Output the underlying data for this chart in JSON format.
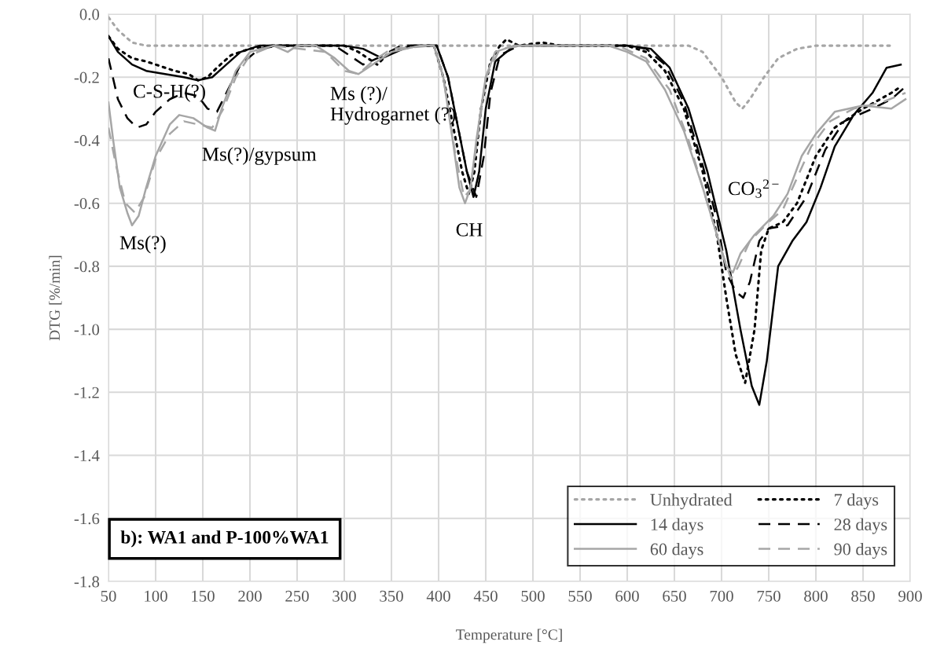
{
  "chart_data": {
    "type": "line",
    "xlabel": "Temperature [°C]",
    "ylabel": "DTG [%/min]",
    "xlim": [
      50,
      900
    ],
    "xticks": [
      50,
      100,
      150,
      200,
      250,
      300,
      350,
      400,
      450,
      500,
      550,
      600,
      650,
      700,
      750,
      800,
      850,
      900
    ],
    "ylim": [
      -1.8,
      0.0
    ],
    "yticks": [
      {
        "value": -1.8,
        "label": "-1.8"
      },
      {
        "value": -1.6,
        "label": "-1.6"
      },
      {
        "value": -1.4,
        "label": "-1.4"
      },
      {
        "value": -1.2,
        "label": "-1.2"
      },
      {
        "value": -1.0,
        "label": "-1.0"
      },
      {
        "value": -0.8,
        "label": "-0.8"
      },
      {
        "value": -0.6,
        "label": "-0.6"
      },
      {
        "value": -0.4,
        "label": "-0.4"
      },
      {
        "value": -0.2,
        "label": "-0.2"
      },
      {
        "value": 0.0,
        "label": "0.0"
      }
    ],
    "grid": true,
    "legend": "bottom right",
    "marker": "none",
    "series": [
      {
        "name": "Unhydrated",
        "color": "#a6a6a6",
        "line_style": "dotted",
        "x": [
          50,
          60,
          75,
          90,
          300,
          665,
          680,
          700,
          715,
          722,
          730,
          745,
          760,
          780,
          800,
          880
        ],
        "values": [
          -0.01,
          -0.05,
          -0.09,
          -0.1,
          -0.1,
          -0.1,
          -0.12,
          -0.2,
          -0.28,
          -0.3,
          -0.27,
          -0.2,
          -0.14,
          -0.11,
          -0.1,
          -0.1
        ]
      },
      {
        "name": "7 days",
        "color": "#000000",
        "line_style": "dotted",
        "x": [
          50,
          60,
          75,
          90,
          100,
          120,
          135,
          145,
          155,
          165,
          180,
          200,
          220,
          300,
          315,
          325,
          335,
          345,
          360,
          380,
          395,
          405,
          415,
          425,
          432,
          438,
          445,
          455,
          465,
          472,
          485,
          510,
          530,
          600,
          620,
          640,
          660,
          680,
          695,
          705,
          715,
          725,
          735,
          742,
          750,
          765,
          780,
          800,
          820,
          850,
          880,
          890
        ],
        "values": [
          -0.07,
          -0.11,
          -0.14,
          -0.15,
          -0.16,
          -0.18,
          -0.19,
          -0.21,
          -0.2,
          -0.17,
          -0.13,
          -0.11,
          -0.1,
          -0.1,
          -0.12,
          -0.14,
          -0.16,
          -0.13,
          -0.11,
          -0.1,
          -0.1,
          -0.2,
          -0.35,
          -0.5,
          -0.57,
          -0.5,
          -0.3,
          -0.15,
          -0.1,
          -0.08,
          -0.1,
          -0.09,
          -0.1,
          -0.1,
          -0.12,
          -0.18,
          -0.3,
          -0.5,
          -0.7,
          -0.9,
          -1.08,
          -1.17,
          -1.0,
          -0.75,
          -0.68,
          -0.66,
          -0.6,
          -0.45,
          -0.36,
          -0.3,
          -0.25,
          -0.23
        ]
      },
      {
        "name": "14 days",
        "color": "#000000",
        "line_style": "solid",
        "x": [
          50,
          60,
          75,
          90,
          110,
          130,
          145,
          160,
          175,
          190,
          210,
          300,
          320,
          340,
          355,
          370,
          398,
          410,
          420,
          430,
          437,
          443,
          450,
          460,
          480,
          600,
          625,
          645,
          665,
          685,
          705,
          720,
          732,
          740,
          748,
          760,
          775,
          790,
          805,
          820,
          840,
          860,
          875,
          890
        ],
        "values": [
          -0.07,
          -0.12,
          -0.16,
          -0.18,
          -0.19,
          -0.2,
          -0.21,
          -0.2,
          -0.16,
          -0.12,
          -0.1,
          -0.1,
          -0.11,
          -0.14,
          -0.12,
          -0.1,
          -0.1,
          -0.2,
          -0.35,
          -0.5,
          -0.58,
          -0.5,
          -0.3,
          -0.15,
          -0.1,
          -0.1,
          -0.11,
          -0.17,
          -0.3,
          -0.5,
          -0.75,
          -1.0,
          -1.18,
          -1.24,
          -1.1,
          -0.8,
          -0.72,
          -0.66,
          -0.55,
          -0.42,
          -0.32,
          -0.25,
          -0.17,
          -0.16
        ]
      },
      {
        "name": "28 days",
        "color": "#000000",
        "line_style": "dashed",
        "x": [
          50,
          60,
          70,
          80,
          90,
          100,
          115,
          130,
          145,
          155,
          165,
          175,
          190,
          210,
          230,
          290,
          305,
          320,
          335,
          360,
          398,
          410,
          420,
          430,
          440,
          448,
          455,
          465,
          485,
          600,
          620,
          640,
          660,
          680,
          695,
          705,
          715,
          723,
          730,
          740,
          750,
          770,
          790,
          810,
          830,
          860,
          880,
          895
        ],
        "values": [
          -0.14,
          -0.27,
          -0.33,
          -0.36,
          -0.35,
          -0.31,
          -0.27,
          -0.25,
          -0.26,
          -0.3,
          -0.31,
          -0.25,
          -0.16,
          -0.11,
          -0.1,
          -0.1,
          -0.13,
          -0.16,
          -0.14,
          -0.1,
          -0.1,
          -0.2,
          -0.35,
          -0.5,
          -0.58,
          -0.45,
          -0.25,
          -0.13,
          -0.1,
          -0.1,
          -0.11,
          -0.16,
          -0.28,
          -0.48,
          -0.65,
          -0.82,
          -0.88,
          -0.9,
          -0.85,
          -0.72,
          -0.68,
          -0.67,
          -0.58,
          -0.43,
          -0.34,
          -0.3,
          -0.27,
          -0.23
        ]
      },
      {
        "name": "60 days",
        "color": "#a6a6a6",
        "line_style": "solid",
        "x": [
          50,
          55,
          62,
          70,
          75,
          82,
          90,
          100,
          115,
          125,
          140,
          155,
          163,
          170,
          185,
          200,
          225,
          240,
          250,
          270,
          290,
          305,
          315,
          330,
          350,
          380,
          395,
          405,
          415,
          422,
          428,
          434,
          440,
          450,
          460,
          480,
          580,
          600,
          620,
          640,
          660,
          680,
          695,
          705,
          712,
          720,
          735,
          755,
          770,
          785,
          800,
          820,
          850,
          880,
          895
        ],
        "values": [
          -0.28,
          -0.4,
          -0.55,
          -0.63,
          -0.67,
          -0.64,
          -0.55,
          -0.45,
          -0.35,
          -0.32,
          -0.33,
          -0.36,
          -0.37,
          -0.3,
          -0.18,
          -0.12,
          -0.1,
          -0.12,
          -0.1,
          -0.1,
          -0.14,
          -0.18,
          -0.19,
          -0.16,
          -0.12,
          -0.1,
          -0.1,
          -0.2,
          -0.4,
          -0.55,
          -0.6,
          -0.55,
          -0.4,
          -0.2,
          -0.12,
          -0.1,
          -0.1,
          -0.12,
          -0.15,
          -0.24,
          -0.37,
          -0.55,
          -0.7,
          -0.8,
          -0.82,
          -0.76,
          -0.7,
          -0.64,
          -0.57,
          -0.45,
          -0.38,
          -0.31,
          -0.29,
          -0.3,
          -0.27
        ]
      },
      {
        "name": "90 days",
        "color": "#a6a6a6",
        "line_style": "dashed",
        "x": [
          50,
          58,
          68,
          78,
          88,
          100,
          115,
          130,
          145,
          160,
          172,
          185,
          200,
          225,
          280,
          300,
          315,
          330,
          350,
          395,
          405,
          418,
          427,
          433,
          440,
          450,
          465,
          490,
          590,
          620,
          645,
          665,
          685,
          700,
          710,
          718,
          730,
          750,
          765,
          780,
          795,
          815,
          840,
          870,
          895
        ],
        "values": [
          -0.36,
          -0.48,
          -0.6,
          -0.63,
          -0.58,
          -0.46,
          -0.38,
          -0.34,
          -0.35,
          -0.36,
          -0.3,
          -0.2,
          -0.13,
          -0.1,
          -0.12,
          -0.18,
          -0.19,
          -0.15,
          -0.11,
          -0.1,
          -0.2,
          -0.45,
          -0.58,
          -0.56,
          -0.42,
          -0.2,
          -0.11,
          -0.1,
          -0.1,
          -0.14,
          -0.24,
          -0.4,
          -0.6,
          -0.75,
          -0.84,
          -0.8,
          -0.72,
          -0.66,
          -0.62,
          -0.52,
          -0.42,
          -0.34,
          -0.3,
          -0.28,
          -0.25
        ]
      }
    ],
    "annotations": [
      "C-S-H(?)",
      "Ms(?)/gypsum",
      "Ms (?)/\nHydrogarnet (?)",
      "CH",
      "CO$_{3}$$^{2−}$",
      "Ms(?)",
      "b): WA1 and P-100%WA1"
    ]
  }
}
